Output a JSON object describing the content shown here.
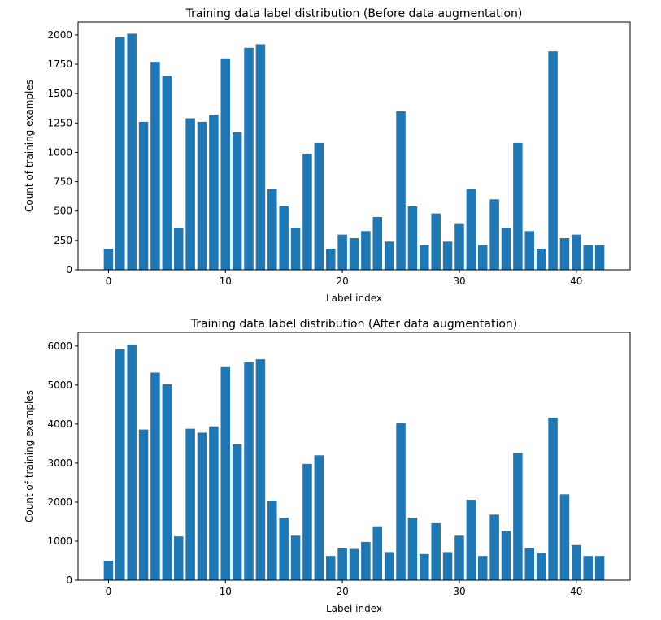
{
  "chart_data": [
    {
      "type": "bar",
      "title": "Training data label distribution (Before data augmentation)",
      "xlabel": "Label index",
      "ylabel": "Count of training examples",
      "x": [
        0,
        1,
        2,
        3,
        4,
        5,
        6,
        7,
        8,
        9,
        10,
        11,
        12,
        13,
        14,
        15,
        16,
        17,
        18,
        19,
        20,
        21,
        22,
        23,
        24,
        25,
        26,
        27,
        28,
        29,
        30,
        31,
        32,
        33,
        34,
        35,
        36,
        37,
        38,
        39,
        40,
        41,
        42
      ],
      "values": [
        180,
        1980,
        2010,
        1260,
        1770,
        1650,
        360,
        1290,
        1260,
        1320,
        1800,
        1170,
        1890,
        1920,
        690,
        540,
        360,
        990,
        1080,
        180,
        300,
        270,
        330,
        450,
        240,
        1350,
        540,
        210,
        480,
        240,
        390,
        690,
        210,
        600,
        360,
        1080,
        330,
        180,
        1860,
        270,
        300,
        210,
        210
      ],
      "xlim": [
        -2.6,
        44.6
      ],
      "ylim": [
        0,
        2110
      ],
      "xticks": [
        0,
        10,
        20,
        30,
        40
      ],
      "yticks": [
        0,
        250,
        500,
        750,
        1000,
        1250,
        1500,
        1750,
        2000
      ],
      "color": "#1f77b4",
      "grid": false,
      "legend": false
    },
    {
      "type": "bar",
      "title": "Training data label distribution (After data augmentation)",
      "xlabel": "Label index",
      "ylabel": "Count of training examples",
      "x": [
        0,
        1,
        2,
        3,
        4,
        5,
        6,
        7,
        8,
        9,
        10,
        11,
        12,
        13,
        14,
        15,
        16,
        17,
        18,
        19,
        20,
        21,
        22,
        23,
        24,
        25,
        26,
        27,
        28,
        29,
        30,
        31,
        32,
        33,
        34,
        35,
        36,
        37,
        38,
        39,
        40,
        41,
        42
      ],
      "values": [
        500,
        5920,
        6040,
        3860,
        5320,
        5020,
        1120,
        3880,
        3780,
        3940,
        5460,
        3480,
        5580,
        5660,
        2040,
        1600,
        1140,
        2980,
        3200,
        620,
        820,
        800,
        980,
        1380,
        720,
        4030,
        1600,
        670,
        1460,
        720,
        1140,
        2060,
        620,
        1680,
        1260,
        3260,
        820,
        700,
        4160,
        2200,
        900,
        620,
        620
      ],
      "xlim": [
        -2.6,
        44.6
      ],
      "ylim": [
        0,
        6350
      ],
      "xticks": [
        0,
        10,
        20,
        30,
        40
      ],
      "yticks": [
        0,
        1000,
        2000,
        3000,
        4000,
        5000,
        6000
      ],
      "color": "#1f77b4",
      "grid": false,
      "legend": false
    }
  ]
}
